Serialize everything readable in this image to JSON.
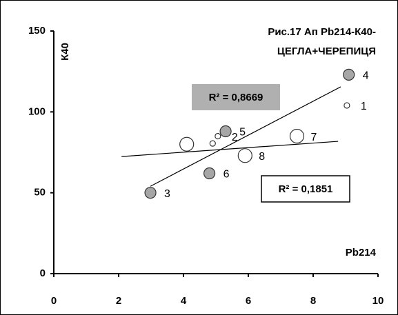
{
  "chart_data": {
    "type": "scatter",
    "title": [
      "Рис.17  Ап  Pb214-К40-",
      "ЦЕГЛА+ЧЕРЕПИЦЯ"
    ],
    "x_label": "Pb214",
    "y_label": "К40",
    "xlim": [
      0,
      10
    ],
    "xticks": [
      0,
      2,
      4,
      6,
      8,
      10
    ],
    "ylim": [
      0,
      150
    ],
    "yticks": [
      0,
      50,
      100,
      150
    ],
    "series": [
      {
        "color": "#a6a6a6",
        "marker_size": 8,
        "x": [
          2.98,
          9.1,
          5.3,
          4.8
        ],
        "values": [
          50,
          123,
          88,
          62
        ],
        "labels": [
          "3",
          "4",
          "5",
          "6"
        ]
      },
      {
        "color": "#ffffff",
        "marker_size": 10,
        "x": [
          7.5,
          5.9,
          4.1
        ],
        "values": [
          85,
          73,
          80
        ],
        "labels": [
          "7",
          "8",
          null
        ]
      },
      {
        "color": "#ffffff",
        "marker_size": 4,
        "x": [
          9.04,
          5.06,
          4.9
        ],
        "values": [
          104,
          85,
          80.5
        ],
        "labels": [
          "1",
          "2",
          null
        ]
      }
    ],
    "trendlines": [
      {
        "x": [
          2.98,
          8.85
        ],
        "values": [
          54,
          115.5
        ],
        "label": "R² = 0,8669",
        "box": "#b0b0b0"
      },
      {
        "x": [
          2.09,
          8.77
        ],
        "values": [
          72.4,
          81.8
        ],
        "label": "R² = 0,1851",
        "box": "#ffffff"
      }
    ]
  }
}
